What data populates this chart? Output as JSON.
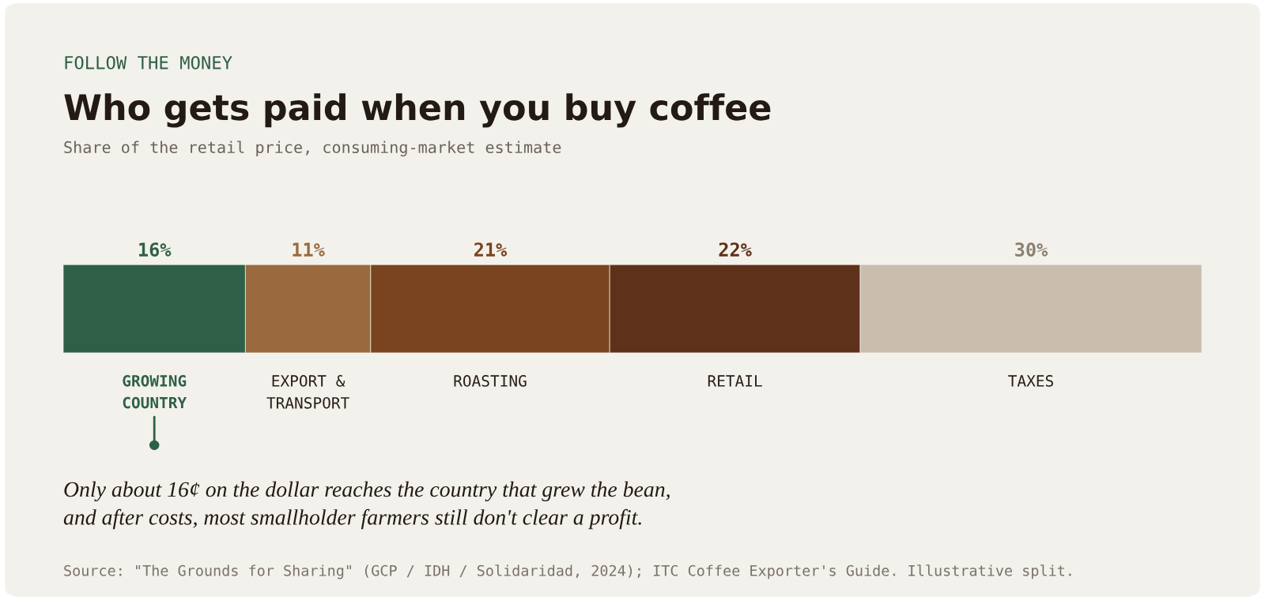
{
  "chart_data": {
    "type": "bar",
    "orientation": "horizontal",
    "stacked": true,
    "title": "Who gets paid when you buy coffee",
    "subtitle": "Share of the retail price, consuming-market estimate",
    "categories": [
      null
    ],
    "series": [
      {
        "name": "GROWING\nCOUNTRY",
        "color": "#2e6047",
        "values": [
          16
        ],
        "value_labels": [
          "16%"
        ]
      },
      {
        "name": "EXPORT &\nTRANSPORT",
        "color": "#9a6a3f",
        "values": [
          11
        ],
        "value_labels": [
          "11%"
        ]
      },
      {
        "name": "ROASTING",
        "color": "#7a4420",
        "values": [
          21
        ],
        "value_labels": [
          "21%"
        ]
      },
      {
        "name": "RETAIL",
        "color": "#5e311a",
        "values": [
          22
        ],
        "value_labels": [
          "22%"
        ]
      },
      {
        "name": "TAXES",
        "color": "#c9bdae",
        "values": [
          30
        ],
        "value_labels": [
          "30%"
        ]
      }
    ],
    "annotations": [
      "FOLLOW THE MONEY",
      "Only about 16¢ on the dollar reaches the country that grew the bean,\nand after costs, most smallholder farmers still don't clear a profit.",
      "Source: \"The Grounds for Sharing\" (GCP / IDH / Solidaridad, 2024); ITC Coffee Exporter's Guide. Illustrative split."
    ]
  }
}
